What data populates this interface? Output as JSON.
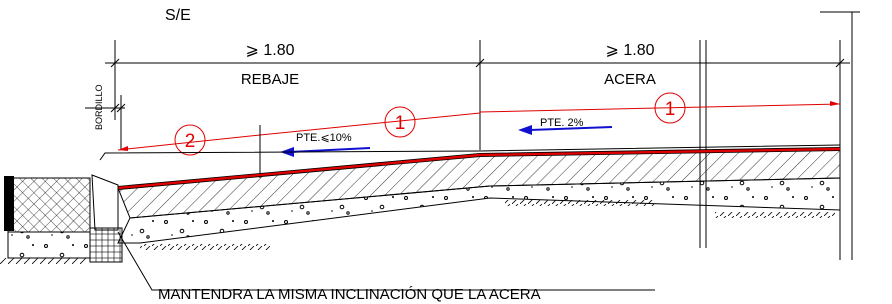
{
  "header": {
    "scale": "S/E"
  },
  "dimensions": [
    {
      "value": "⩾ 1.80",
      "label": "REBAJE"
    },
    {
      "value": "⩾ 1.80",
      "label": "ACERA"
    }
  ],
  "curb": {
    "label": "BORDILLO"
  },
  "markers": [
    "2",
    "1",
    "1"
  ],
  "slopes": [
    "PTE.⩽10%",
    "PTE. 2%"
  ],
  "note": "MANTENDRA LA MISMA INCLINACIÓN QUE LA ACERA"
}
